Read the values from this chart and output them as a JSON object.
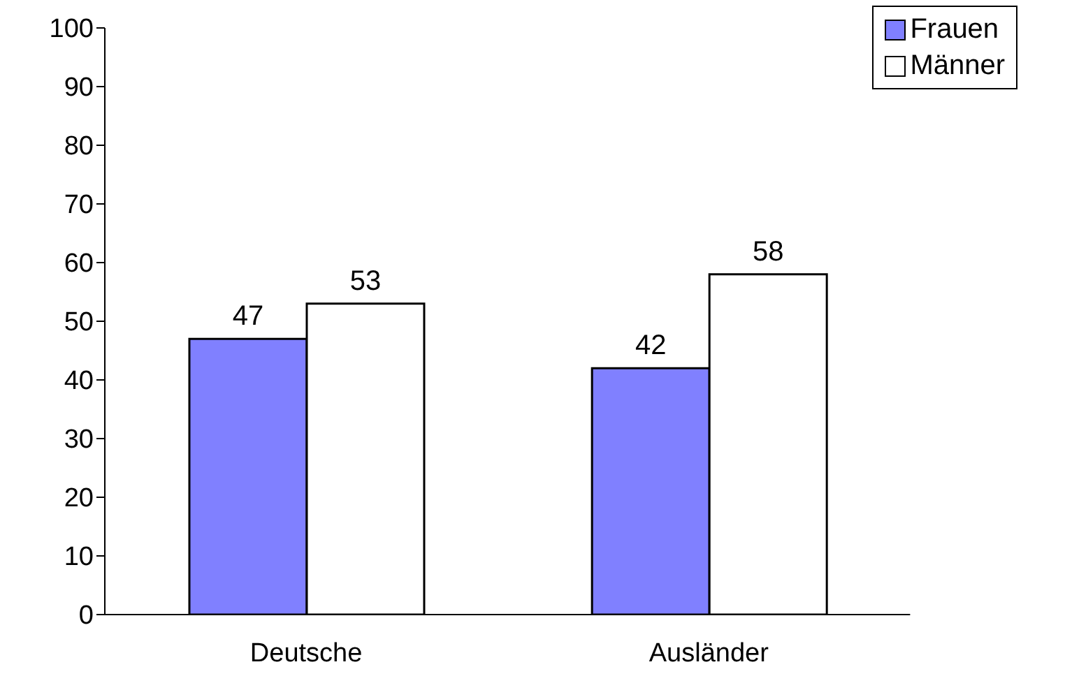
{
  "chart_data": {
    "type": "bar",
    "categories": [
      "Deutsche",
      "Ausländer"
    ],
    "series": [
      {
        "name": "Frauen",
        "color": "#8080ff",
        "values": [
          47,
          42
        ]
      },
      {
        "name": "Männer",
        "color": "#ffffff",
        "values": [
          53,
          58
        ]
      }
    ],
    "ylim": [
      0,
      100
    ],
    "yticks": [
      0,
      10,
      20,
      30,
      40,
      50,
      60,
      70,
      80,
      90,
      100
    ],
    "grid": false,
    "legend": "top right",
    "data_labels": true
  }
}
